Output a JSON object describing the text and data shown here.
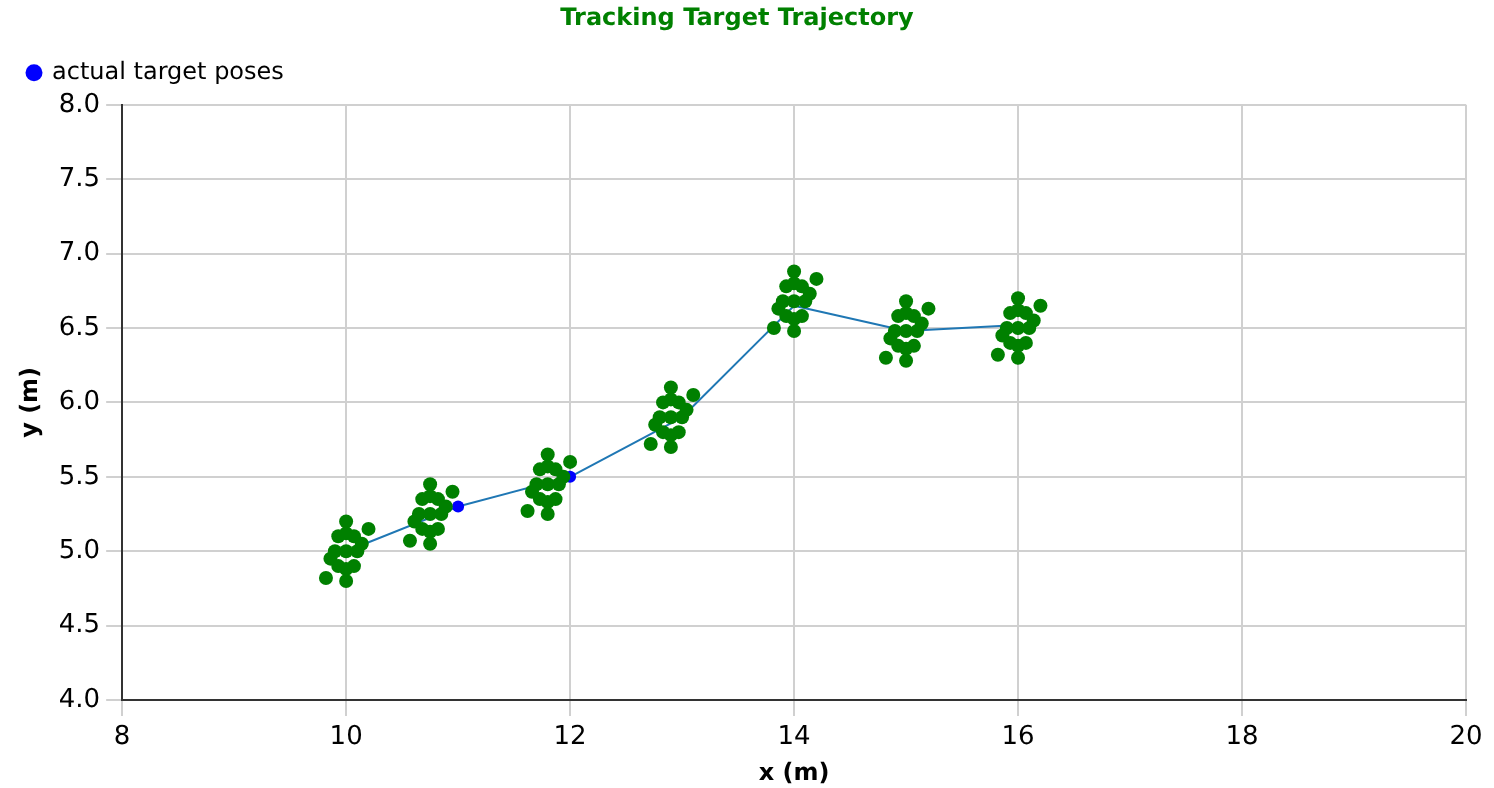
{
  "chart_data": {
    "type": "scatter",
    "title": "Tracking Target Trajectory",
    "xlabel": "x (m)",
    "ylabel": "y (m)",
    "xlim": [
      8,
      20
    ],
    "ylim": [
      4,
      8
    ],
    "xticks": [
      8,
      10,
      12,
      14,
      16,
      18,
      20
    ],
    "yticks": [
      {
        "value": 4,
        "label": "4.0"
      },
      4.5,
      {
        "value": 5,
        "label": "5.0"
      },
      5.5,
      {
        "value": 6,
        "label": "6.0"
      },
      6.5,
      {
        "value": 7,
        "label": "7.0"
      },
      7.5,
      {
        "value": 8,
        "label": "8.0"
      }
    ],
    "grid": true,
    "legend": "top left",
    "marker": "circle",
    "series": [
      {
        "type": "line",
        "color": "#1f77b4",
        "marker": "none",
        "line_style": "solid",
        "x": [
          10,
          11,
          12,
          13,
          14,
          15,
          16
        ],
        "values": [
          5.0,
          5.3,
          5.5,
          5.9,
          6.65,
          6.48,
          6.52
        ]
      },
      {
        "type": "scatter",
        "name": "actual target poses",
        "color": "#0000ff",
        "x": [
          11,
          12
        ],
        "values": [
          5.3,
          5.5
        ]
      },
      {
        "type": "scatter",
        "color": "#008000",
        "x": [
          10,
          10.1,
          9.9,
          10,
          10,
          10.07,
          9.93,
          10.07,
          9.93,
          10,
          10,
          10.14,
          9.86,
          10.2,
          9.82,
          10.75,
          10.85,
          10.65,
          10.75,
          10.75,
          10.82,
          10.68,
          10.82,
          10.68,
          10.75,
          10.75,
          10.89,
          10.61,
          10.95,
          10.57,
          11.8,
          11.9,
          11.7,
          11.8,
          11.8,
          11.87,
          11.73,
          11.87,
          11.73,
          11.8,
          11.8,
          11.94,
          11.66,
          12,
          11.62,
          12.9,
          13,
          12.8,
          12.9,
          12.9,
          12.97,
          12.83,
          12.97,
          12.83,
          12.9,
          12.9,
          13.04,
          12.76,
          13.1,
          12.72,
          14,
          14.1,
          13.9,
          14,
          14,
          14.07,
          13.93,
          14.07,
          13.93,
          14,
          14,
          14.14,
          13.86,
          14.2,
          13.82,
          15,
          15.1,
          14.9,
          15,
          15,
          15.07,
          14.93,
          15.07,
          14.93,
          15,
          15,
          15.14,
          14.86,
          15.2,
          14.82,
          16,
          16.1,
          15.9,
          16,
          16,
          16.07,
          15.93,
          16.07,
          15.93,
          16,
          16,
          16.14,
          15.86,
          16.2,
          15.82
        ],
        "values": [
          5,
          5,
          5,
          5.12,
          4.88,
          5.1,
          5.1,
          4.9,
          4.9,
          5.2,
          4.8,
          5.05,
          4.95,
          5.15,
          4.82,
          5.25,
          5.25,
          5.25,
          5.37,
          5.13,
          5.35,
          5.35,
          5.15,
          5.15,
          5.45,
          5.05,
          5.3,
          5.2,
          5.4,
          5.07,
          5.45,
          5.45,
          5.45,
          5.57,
          5.33,
          5.55,
          5.55,
          5.35,
          5.35,
          5.65,
          5.25,
          5.5,
          5.4,
          5.6,
          5.27,
          5.9,
          5.9,
          5.9,
          6.02,
          5.78,
          6,
          6,
          5.8,
          5.8,
          6.1,
          5.7,
          5.95,
          5.85,
          6.05,
          5.72,
          6.68,
          6.68,
          6.68,
          6.8,
          6.56,
          6.78,
          6.78,
          6.58,
          6.58,
          6.88,
          6.48,
          6.73,
          6.63,
          6.83,
          6.5,
          6.48,
          6.48,
          6.48,
          6.6,
          6.36,
          6.58,
          6.58,
          6.38,
          6.38,
          6.68,
          6.28,
          6.53,
          6.43,
          6.63,
          6.3,
          6.5,
          6.5,
          6.5,
          6.62,
          6.38,
          6.6,
          6.6,
          6.4,
          6.4,
          6.7,
          6.3,
          6.55,
          6.45,
          6.65,
          6.32
        ]
      }
    ]
  }
}
